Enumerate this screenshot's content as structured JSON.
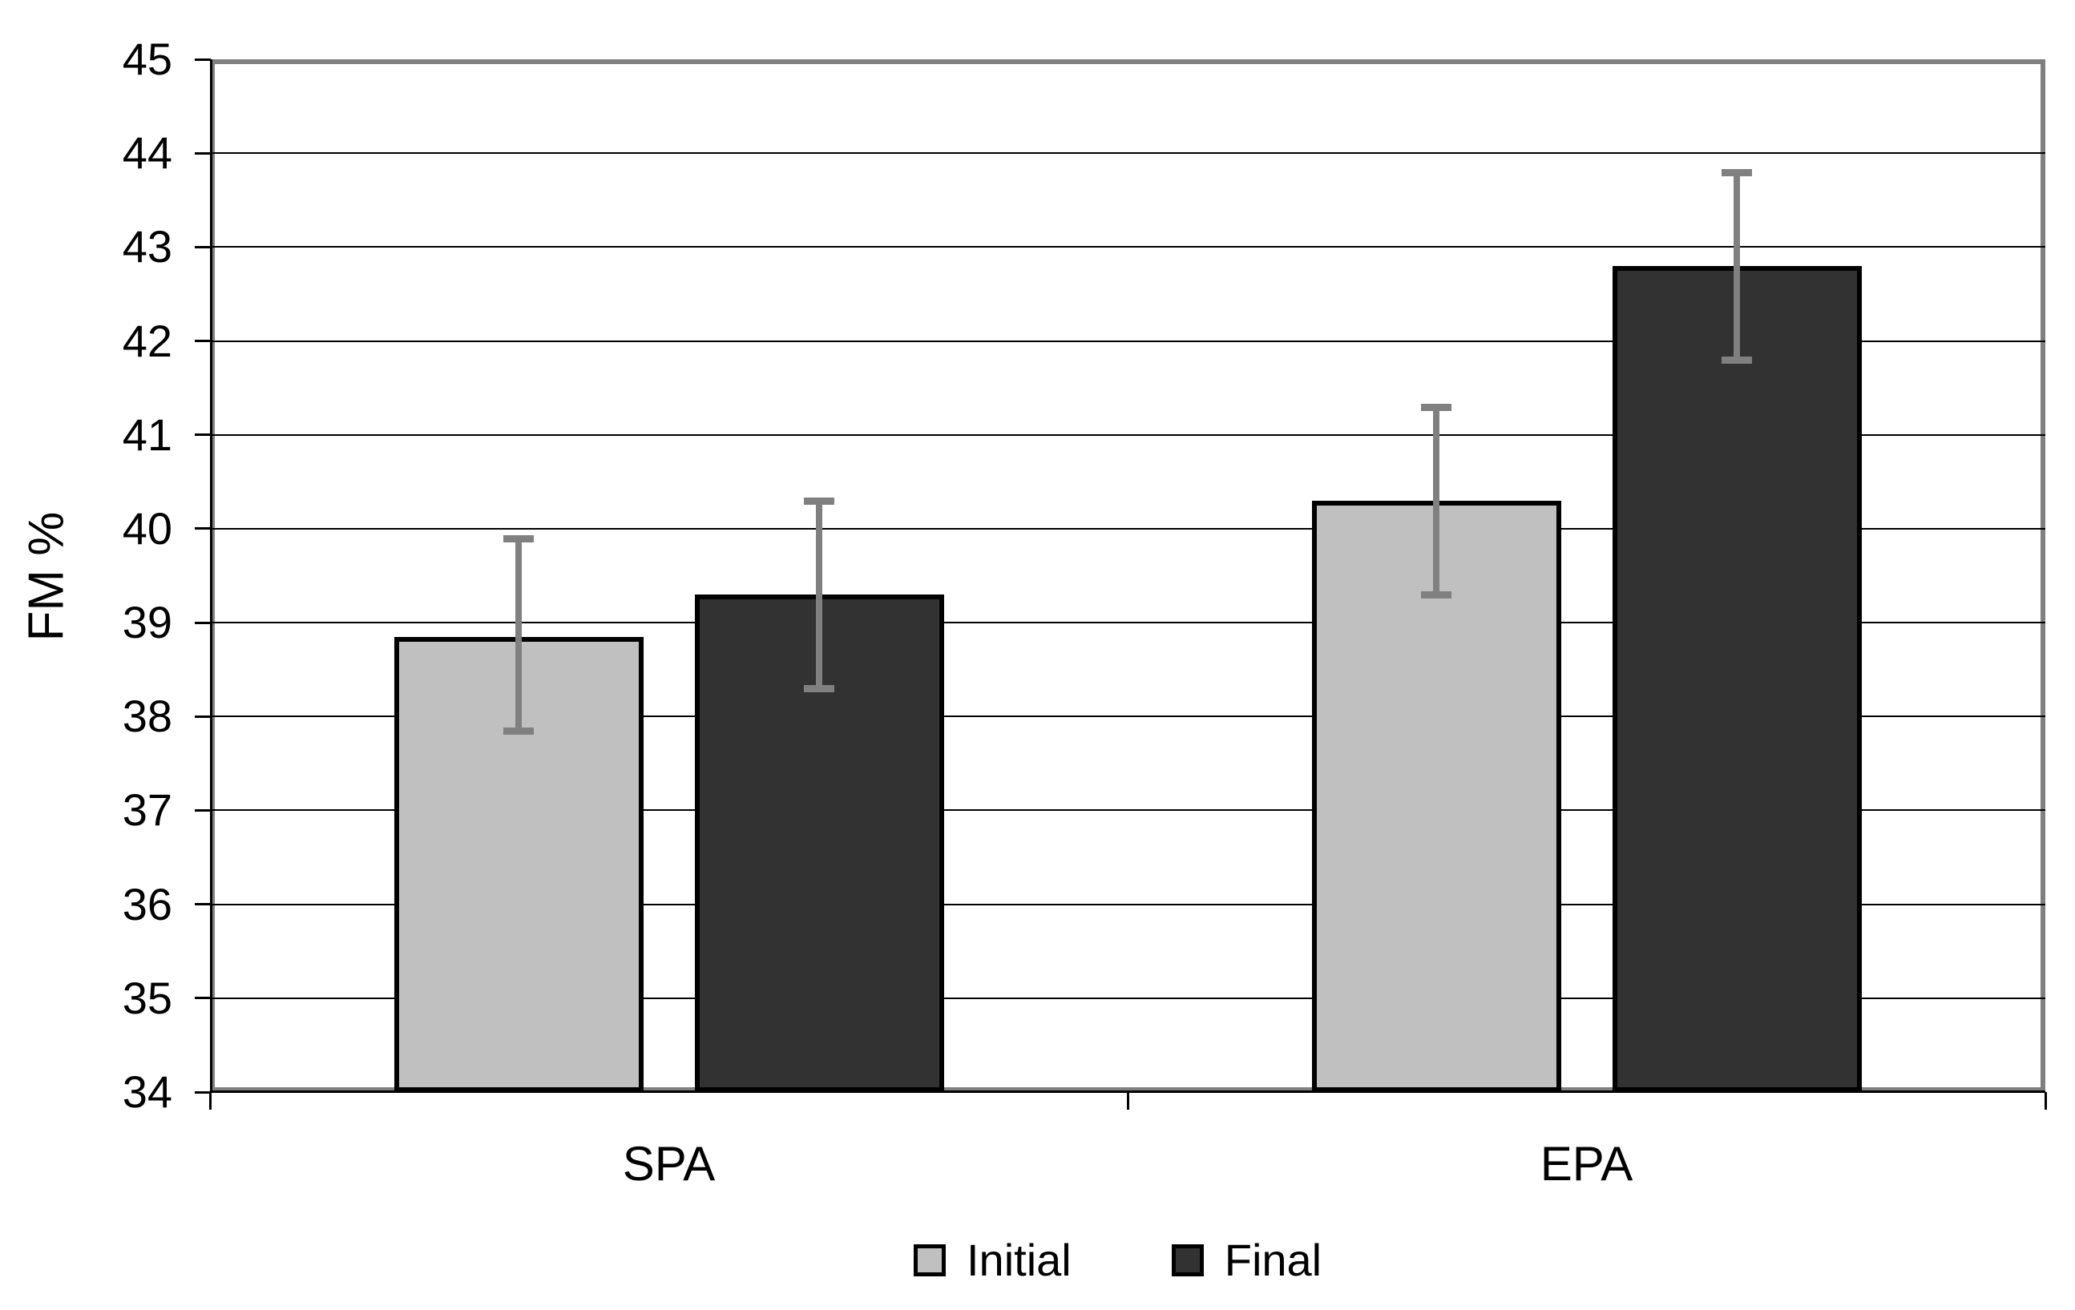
{
  "chart_data": {
    "type": "bar",
    "title": "",
    "xlabel": "",
    "ylabel": "FM %",
    "categories": [
      "SPA",
      "EPA"
    ],
    "series": [
      {
        "name": "Initial",
        "color": "#c0c0c0",
        "values": [
          38.85,
          40.3
        ],
        "error_low": [
          37.85,
          39.3
        ],
        "error_high": [
          39.9,
          41.3
        ]
      },
      {
        "name": "Final",
        "color": "#323232",
        "values": [
          39.3,
          42.8
        ],
        "error_low": [
          38.3,
          41.8
        ],
        "error_high": [
          40.3,
          43.8
        ]
      }
    ],
    "ylim": [
      34,
      45
    ],
    "yticks": [
      34,
      35,
      36,
      37,
      38,
      39,
      40,
      41,
      42,
      43,
      44,
      45
    ],
    "grid": true,
    "legend_position": "bottom",
    "error_bar_color": "#808080",
    "frame_color": "#808080",
    "axis_color": "#000000"
  }
}
